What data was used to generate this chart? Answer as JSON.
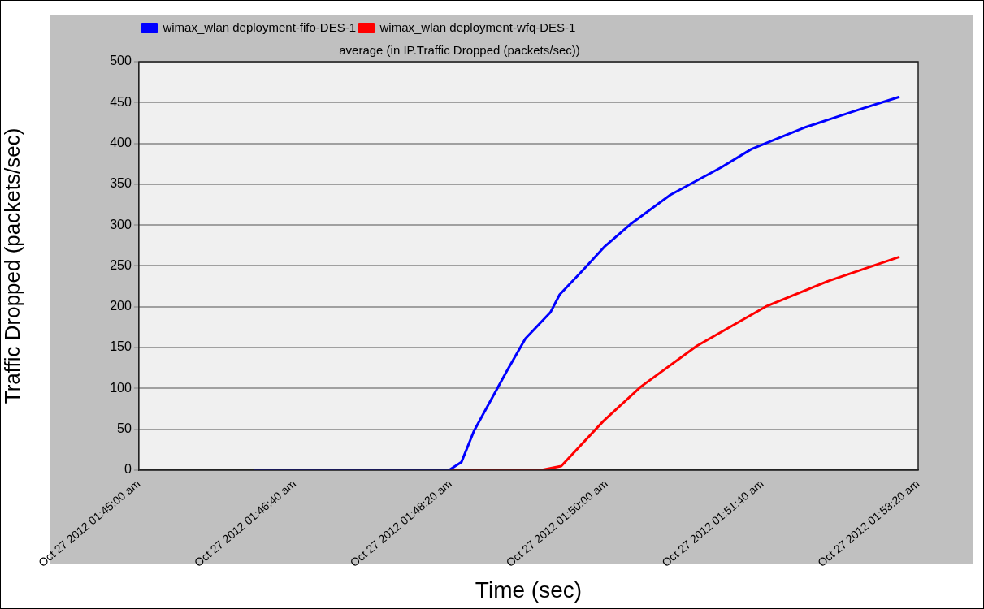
{
  "chart_data": {
    "type": "line",
    "title": "average (in IP.Traffic Dropped (packets/sec))",
    "xlabel": "Time (sec)",
    "ylabel": "Traffic Dropped (packets/sec)",
    "xlim": [
      "2012-10-27T01:45:00",
      "2012-10-27T01:53:20"
    ],
    "xticks": [
      {
        "value": "2012-10-27T01:45:00",
        "label": "Oct 27 2012 01:45:00 am"
      },
      {
        "value": "2012-10-27T01:46:40",
        "label": "Oct 27 2012 01:46:40 am"
      },
      {
        "value": "2012-10-27T01:48:20",
        "label": "Oct 27 2012 01:48:20 am"
      },
      {
        "value": "2012-10-27T01:50:00",
        "label": "Oct 27 2012 01:50:00 am"
      },
      {
        "value": "2012-10-27T01:51:40",
        "label": "Oct 27 2012 01:51:40 am"
      },
      {
        "value": "2012-10-27T01:53:20",
        "label": "Oct 27 2012 01:53:20 am"
      }
    ],
    "ylim": [
      0,
      500
    ],
    "yticks": [
      0,
      50,
      100,
      150,
      200,
      250,
      300,
      350,
      400,
      450,
      500
    ],
    "grid": "y",
    "legend": "top left",
    "marker": "none",
    "line_style": "solid",
    "series": [
      {
        "name": "wimax_wlan deployment-fifo-DES-1",
        "color": "#0000ff",
        "x": [
          "2012-10-27T01:46:14",
          "2012-10-27T01:48:19",
          "2012-10-27T01:48:27",
          "2012-10-27T01:48:35",
          "2012-10-27T01:48:56",
          "2012-10-27T01:49:08",
          "2012-10-27T01:49:24",
          "2012-10-27T01:49:30",
          "2012-10-27T01:49:45",
          "2012-10-27T01:49:59",
          "2012-10-27T01:50:16",
          "2012-10-27T01:50:41",
          "2012-10-27T01:51:14",
          "2012-10-27T01:51:33",
          "2012-10-27T01:52:08",
          "2012-10-27T01:52:43",
          "2012-10-27T01:53:08"
        ],
        "values": [
          0,
          0,
          10,
          48,
          121,
          161,
          193,
          215,
          245,
          274,
          302,
          337,
          371,
          393,
          420,
          442,
          457
        ]
      },
      {
        "name": "wimax_wlan deployment-wfq-DES-1",
        "color": "#ff0000",
        "x": [
          "2012-10-27T01:48:19",
          "2012-10-27T01:49:18",
          "2012-10-27T01:49:31",
          "2012-10-27T01:49:58",
          "2012-10-27T01:50:22",
          "2012-10-27T01:50:58",
          "2012-10-27T01:51:43",
          "2012-10-27T01:52:23",
          "2012-10-27T01:53:08"
        ],
        "values": [
          0,
          0,
          5,
          60,
          102,
          152,
          201,
          232,
          261
        ]
      }
    ]
  }
}
